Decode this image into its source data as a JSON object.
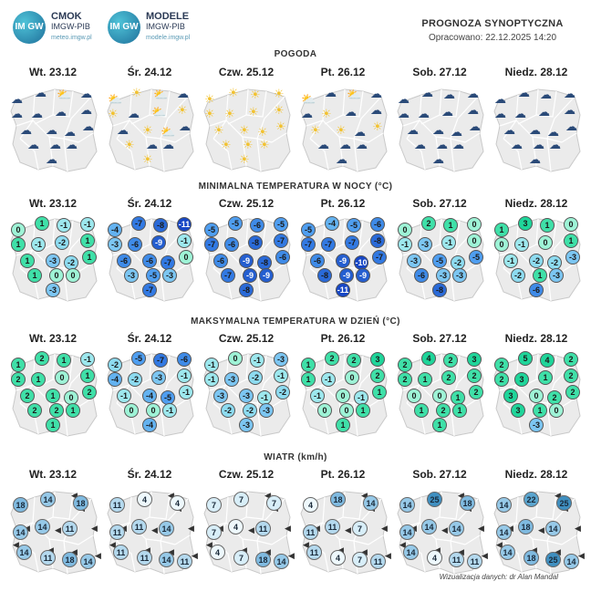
{
  "logos": {
    "cmok": {
      "badge": "IM GW",
      "name": "CMOK",
      "org": "IMGW-PIB",
      "url": "meteo.imgw.pl"
    },
    "modele": {
      "badge": "IM GW",
      "name": "MODELE",
      "org": "IMGW-PIB",
      "url": "modele.imgw.pl"
    }
  },
  "header": {
    "title": "PROGNOZA SYNOPTYCZNA",
    "updated": "Opracowano: 22.12.2025 14:20"
  },
  "days": [
    "Wt. 23.12",
    "Śr. 24.12",
    "Czw. 25.12",
    "Pt. 26.12",
    "Sob. 27.12",
    "Niedz. 28.12"
  ],
  "sections": {
    "weather": "POGODA",
    "tmin": "MINIMALNA TEMPERATURA W NOCY (°C)",
    "tmax": "MAKSYMALNA TEMPERATURA W DZIEŃ (°C)",
    "wind": "WIATR (km/h)"
  },
  "weather_icons": [
    [
      "cloud-icon",
      "cloud-icon",
      "sun-cloud-icon",
      "cloud-icon",
      "cloud-icon",
      "snow-cloud-icon",
      "cloud-icon",
      "cloud-icon",
      "cloud-icon",
      "cloud-icon",
      "cloud-icon",
      "cloud-icon",
      "cloud-icon",
      "cloud-icon",
      "cloud-icon",
      "cloud-icon"
    ],
    [
      "sun-cloud-icon",
      "sun-icon",
      "sun-cloud-icon",
      "cloud-icon",
      "sun-icon",
      "cloud-icon",
      "sun-cloud-icon",
      "sun-icon",
      "cloud-icon",
      "sun-icon",
      "sun-cloud-icon",
      "cloud-icon",
      "sun-icon",
      "cloud-icon",
      "cloud-icon",
      "sun-icon"
    ],
    [
      "sun-icon",
      "sun-icon",
      "sun-icon",
      "sun-icon",
      "sun-icon",
      "sun-icon",
      "sun-icon",
      "sun-icon",
      "sun-icon",
      "sun-icon",
      "sun-icon",
      "sun-icon",
      "sun-icon",
      "sun-icon",
      "sun-icon",
      "sun-icon"
    ],
    [
      "sun-cloud-icon",
      "cloud-icon",
      "sun-cloud-icon",
      "cloud-icon",
      "cloud-icon",
      "sun-icon",
      "cloud-icon",
      "cloud-icon",
      "sun-icon",
      "sun-icon",
      "cloud-icon",
      "sun-icon",
      "cloud-icon",
      "cloud-icon",
      "cloud-icon",
      "cloud-icon"
    ],
    [
      "cloud-icon",
      "cloud-icon",
      "cloud-icon",
      "cloud-icon",
      "cloud-icon",
      "cloud-icon",
      "cloud-icon",
      "cloud-icon",
      "cloud-icon",
      "cloud-icon",
      "cloud-icon",
      "cloud-icon",
      "cloud-icon",
      "cloud-icon",
      "cloud-icon",
      "cloud-icon"
    ],
    [
      "cloud-icon",
      "cloud-icon",
      "cloud-icon",
      "cloud-icon",
      "cloud-icon",
      "cloud-icon",
      "cloud-icon",
      "cloud-icon",
      "cloud-icon",
      "cloud-icon",
      "cloud-icon",
      "cloud-icon",
      "cloud-icon",
      "cloud-icon",
      "cloud-icon",
      "cloud-icon"
    ]
  ],
  "tmin": [
    [
      0,
      1,
      -1,
      -1,
      1,
      -1,
      -2,
      1,
      1,
      -3,
      -2,
      1,
      1,
      0,
      0,
      -3
    ],
    [
      -4,
      -7,
      -8,
      -11,
      -3,
      -6,
      -9,
      -1,
      -6,
      -6,
      -7,
      0,
      -3,
      -5,
      -3,
      -7
    ],
    [
      -5,
      -5,
      -6,
      -5,
      -7,
      -6,
      -8,
      -7,
      -6,
      -9,
      -8,
      -6,
      -7,
      -9,
      -9,
      -8
    ],
    [
      -5,
      -4,
      -5,
      -6,
      -7,
      -7,
      -7,
      -8,
      -6,
      -9,
      -10,
      -7,
      -8,
      -9,
      -9,
      -11
    ],
    [
      0,
      2,
      1,
      0,
      -1,
      -3,
      -1,
      0,
      -3,
      -5,
      -2,
      -5,
      -6,
      -3,
      -3,
      -8
    ],
    [
      1,
      3,
      1,
      0,
      0,
      -1,
      0,
      1,
      -1,
      -2,
      -2,
      -3,
      -2,
      1,
      -3,
      -6
    ]
  ],
  "tmax": [
    [
      1,
      2,
      1,
      -1,
      2,
      1,
      0,
      1,
      2,
      1,
      0,
      2,
      2,
      2,
      1,
      1
    ],
    [
      -2,
      -5,
      -7,
      -6,
      -4,
      -2,
      -3,
      -1,
      -1,
      -4,
      -5,
      -1,
      0,
      0,
      -1,
      -4
    ],
    [
      -1,
      0,
      -1,
      -3,
      -1,
      -3,
      -2,
      -1,
      -3,
      -3,
      -1,
      -2,
      -2,
      -2,
      -3,
      -3
    ],
    [
      1,
      2,
      2,
      3,
      1,
      -1,
      0,
      2,
      -1,
      0,
      -1,
      1,
      0,
      0,
      1,
      1
    ],
    [
      2,
      4,
      2,
      3,
      2,
      1,
      2,
      2,
      0,
      0,
      1,
      2,
      1,
      2,
      1,
      1
    ],
    [
      2,
      5,
      4,
      2,
      2,
      3,
      1,
      2,
      3,
      0,
      2,
      2,
      3,
      1,
      0,
      -3
    ]
  ],
  "wind": [
    [
      18,
      14,
      18,
      14,
      14,
      11,
      14,
      11,
      18,
      14
    ],
    [
      11,
      4,
      4,
      11,
      11,
      14,
      11,
      11,
      14,
      11
    ],
    [
      7,
      7,
      7,
      7,
      4,
      11,
      4,
      7,
      18,
      14
    ],
    [
      4,
      18,
      14,
      11,
      11,
      7,
      11,
      4,
      7,
      11
    ],
    [
      14,
      25,
      18,
      14,
      14,
      14,
      14,
      4,
      11,
      11
    ],
    [
      14,
      22,
      25,
      14,
      18,
      14,
      14,
      18,
      25,
      14
    ]
  ],
  "footer": "Wizualizacja danych: dr Alan Mandal",
  "colors": {
    "map_fill": "#ebebeb",
    "map_stroke": "#c9c9c9",
    "sun": "#f2c230",
    "cloud": "#2a4a78"
  }
}
